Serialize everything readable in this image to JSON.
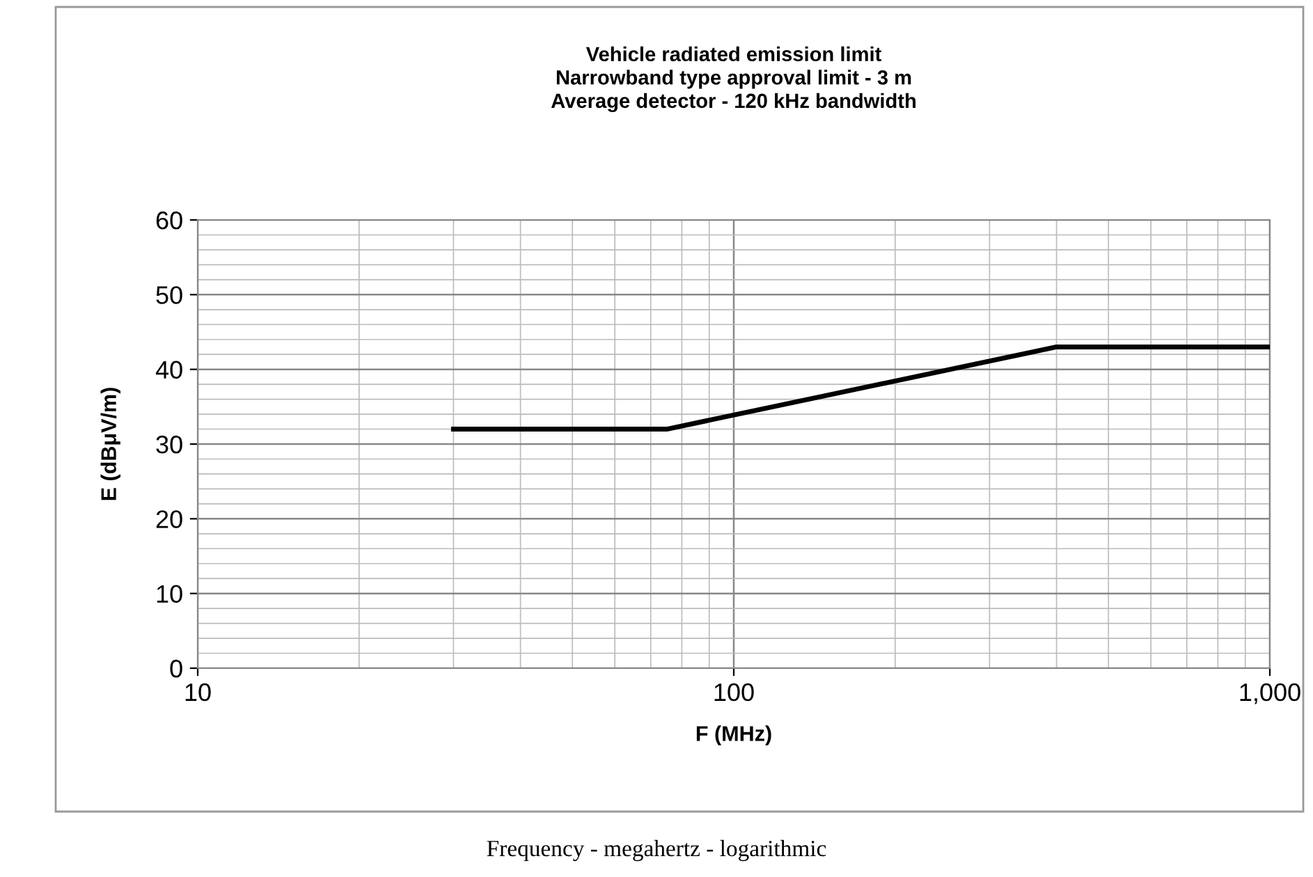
{
  "chart_data": {
    "type": "line",
    "title": "Vehicle radiated emission limit\nNarrowband type approval limit - 3 m\nAverage detector - 120 kHz bandwidth",
    "xlabel": "F (MHz)",
    "ylabel": "E (dBμV/m)",
    "series": [
      {
        "color": "#000000",
        "x": [
          30,
          75,
          400,
          1000
        ],
        "values": [
          32,
          32,
          43,
          43
        ]
      }
    ],
    "log": "x",
    "xlim": [
      10,
      1000
    ],
    "xticks": [
      10,
      100,
      {
        "value": 1000,
        "label": "1,000"
      }
    ],
    "ylim": [
      0,
      60
    ],
    "yticks": [
      0,
      10,
      20,
      30,
      40,
      50,
      60
    ],
    "grid": true,
    "marker": "none",
    "line_style": "solid",
    "legend": false,
    "annotations": [
      "Frequency - megahertz - logarithmic"
    ]
  }
}
